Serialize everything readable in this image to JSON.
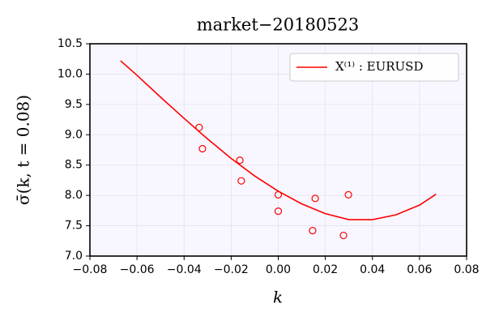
{
  "chart_data": {
    "type": "line",
    "title": "market−20180523",
    "x_label": "k",
    "y_label": "σ̄(k, t = 0.08)",
    "xlim": [
      -0.08,
      0.08
    ],
    "ylim": [
      7.0,
      10.5
    ],
    "xticks": [
      {
        "value": -0.08,
        "label": "−0.08"
      },
      {
        "value": -0.06,
        "label": "−0.06"
      },
      {
        "value": -0.04,
        "label": "−0.04"
      },
      {
        "value": -0.02,
        "label": "−0.02"
      },
      {
        "value": 0,
        "label": "0.00"
      },
      {
        "value": 0.02,
        "label": "0.02"
      },
      {
        "value": 0.04,
        "label": "0.04"
      },
      {
        "value": 0.06,
        "label": "0.06"
      },
      {
        "value": 0.08,
        "label": "0.08"
      }
    ],
    "yticks": [
      {
        "value": 7,
        "label": "7.0"
      },
      7.5,
      {
        "value": 8,
        "label": "8.0"
      },
      8.5,
      {
        "value": 9,
        "label": "9.0"
      },
      9.5,
      {
        "value": 10,
        "label": "10.0"
      },
      10.5
    ],
    "grid": true,
    "legend": "upper right",
    "series": [
      {
        "name": "X⁽¹⁾ : EURUSD",
        "type": "line",
        "color": "#ff0000",
        "x": [
          -0.067,
          -0.06,
          -0.05,
          -0.04,
          -0.03,
          -0.02,
          -0.01,
          0.0,
          0.01,
          0.02,
          0.03,
          0.04,
          0.05,
          0.06,
          0.067
        ],
        "values": [
          10.22,
          9.98,
          9.62,
          9.27,
          8.93,
          8.61,
          8.32,
          8.07,
          7.86,
          7.7,
          7.6,
          7.6,
          7.68,
          7.84,
          8.02
        ]
      },
      {
        "type": "scatter",
        "color": "#ff0000",
        "x": [
          -0.0336,
          -0.0322,
          -0.0163,
          -0.0157,
          0.0,
          0.0,
          0.0146,
          0.0157,
          0.0277,
          0.0298
        ],
        "values": [
          9.12,
          8.77,
          8.58,
          8.24,
          8.01,
          7.74,
          7.42,
          7.95,
          7.34,
          8.01
        ]
      }
    ]
  }
}
